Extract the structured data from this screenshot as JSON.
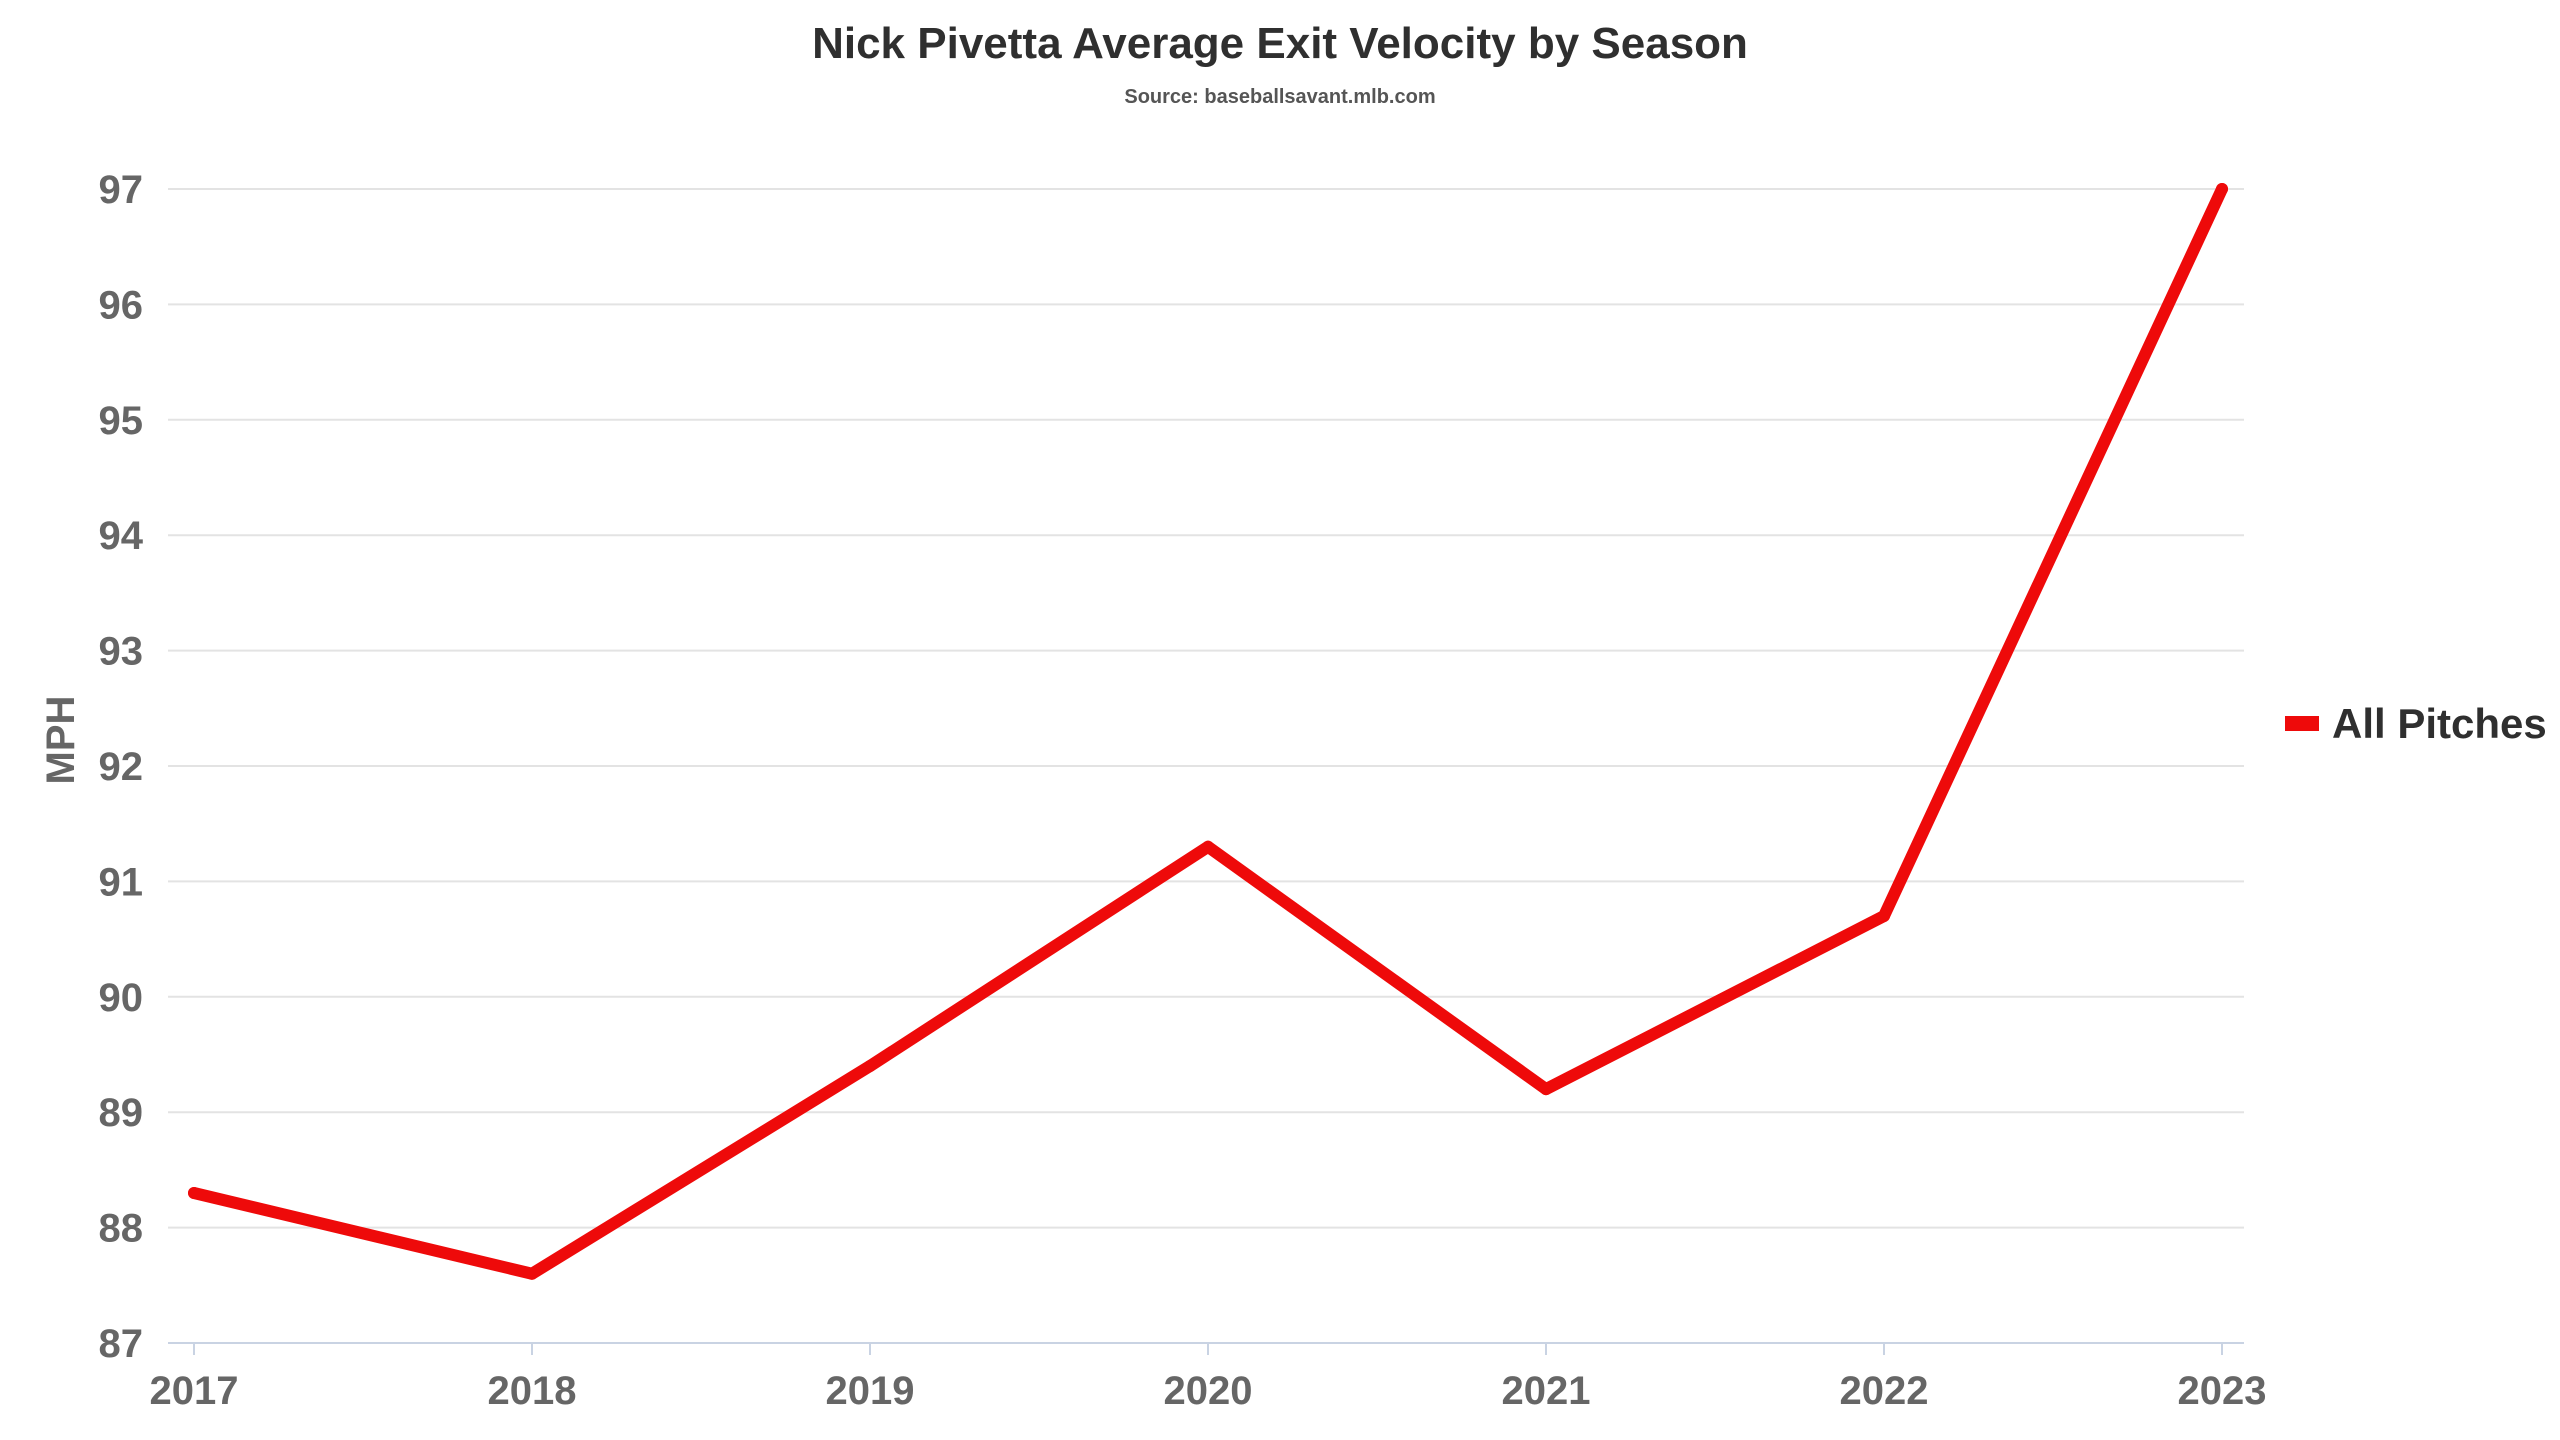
{
  "chart_data": {
    "type": "line",
    "title": "Nick Pivetta Average Exit Velocity by Season",
    "subtitle": "Source: baseballsavant.mlb.com",
    "xlabel": "",
    "ylabel": "MPH",
    "categories": [
      "2017",
      "2018",
      "2019",
      "2020",
      "2021",
      "2022",
      "2023"
    ],
    "y_ticks": [
      "87",
      "88",
      "89",
      "90",
      "91",
      "92",
      "93",
      "94",
      "95",
      "96",
      "97"
    ],
    "ylim": [
      87,
      97
    ],
    "grid": true,
    "legend_position": "right",
    "series": [
      {
        "name": "All Pitches",
        "color": "#ee0a0a",
        "values": [
          88.3,
          87.6,
          89.4,
          91.3,
          89.2,
          90.7,
          97.0
        ]
      }
    ]
  }
}
